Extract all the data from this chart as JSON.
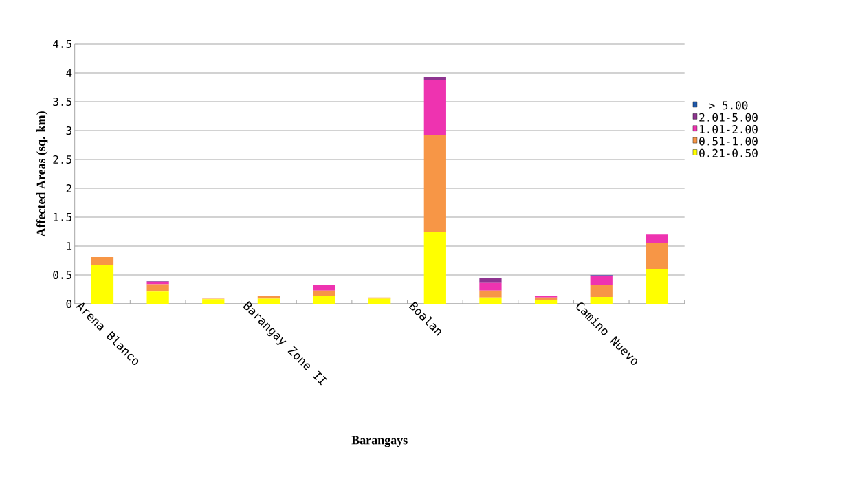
{
  "chart_data": {
    "type": "bar",
    "stacked": true,
    "xlabel": "Barangays",
    "ylabel": "Affected Areas (sq. km)",
    "categories": [
      "Arena Blanco",
      null,
      null,
      "Barangay Zone II",
      null,
      null,
      "Boalan",
      null,
      null,
      "Camino Nuevo",
      null
    ],
    "series": [
      {
        "name": "0.21-0.50",
        "color": "#ffff00",
        "values": [
          0.67,
          0.21,
          0.08,
          0.09,
          0.14,
          0.09,
          1.24,
          0.11,
          0.07,
          0.12,
          0.6
        ]
      },
      {
        "name": "0.51-1.00",
        "color": "#f79646",
        "values": [
          0.14,
          0.13,
          0.01,
          0.04,
          0.09,
          0.02,
          1.69,
          0.12,
          0.04,
          0.2,
          0.46
        ]
      },
      {
        "name": "1.01-2.00",
        "color": "#ee33b0",
        "values": [
          0,
          0.04,
          0,
          0,
          0.09,
          0,
          0.94,
          0.13,
          0.03,
          0.17,
          0.14
        ]
      },
      {
        "name": "2.01-5.00",
        "color": "#8e3490",
        "values": [
          0,
          0.01,
          0,
          0,
          0,
          0,
          0.06,
          0.08,
          0,
          0,
          0
        ]
      },
      {
        "name": "> 5.00",
        "color": "#1f58aa",
        "values": [
          0,
          0,
          0,
          0,
          0,
          0,
          0,
          0,
          0,
          0.01,
          0
        ]
      }
    ],
    "ylim": [
      0,
      4.5
    ],
    "yticks": [
      0,
      0.5,
      1,
      1.5,
      2,
      2.5,
      3,
      3.5,
      4,
      4.5
    ],
    "grid": "y",
    "legend": "right"
  }
}
